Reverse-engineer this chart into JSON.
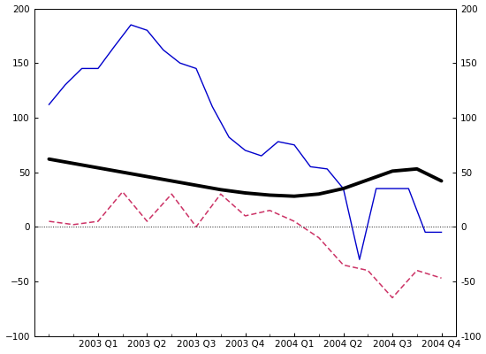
{
  "x_tick_positions": [
    1,
    2,
    3,
    4,
    5,
    6,
    7,
    8
  ],
  "x_tick_labels": [
    "2003 Q1",
    "2003 Q2",
    "2003 Q3",
    "2003 Q4",
    "2004 Q1",
    "2004 Q2",
    "2004 Q3",
    "2004 Q4"
  ],
  "blue_x": [
    0,
    0.33,
    0.67,
    1,
    1.33,
    1.67,
    2,
    2.33,
    2.67,
    3,
    3.33,
    3.67,
    4,
    4.33,
    4.67,
    5,
    5.33,
    5.67,
    6,
    6.33,
    6.67,
    7,
    7.33,
    7.67,
    8
  ],
  "blue_y": [
    112,
    130,
    145,
    145,
    165,
    185,
    180,
    162,
    150,
    145,
    110,
    82,
    70,
    65,
    78,
    75,
    55,
    53,
    35,
    -30,
    35,
    35,
    35,
    -5,
    -5
  ],
  "black_x": [
    0,
    0.5,
    1,
    1.5,
    2,
    2.5,
    3,
    3.5,
    4,
    4.5,
    5,
    5.5,
    6,
    6.5,
    7,
    7.5,
    8
  ],
  "black_y": [
    62,
    58,
    54,
    50,
    46,
    42,
    38,
    34,
    31,
    29,
    28,
    30,
    35,
    43,
    51,
    53,
    42
  ],
  "red_x": [
    0,
    0.5,
    1,
    1.5,
    2,
    2.5,
    3,
    3.5,
    4,
    4.5,
    5,
    5.5,
    6,
    6.5,
    7,
    7.5,
    8
  ],
  "red_y": [
    5,
    2,
    5,
    32,
    5,
    30,
    0,
    30,
    10,
    15,
    5,
    -10,
    -35,
    -40,
    -65,
    -40,
    -47
  ],
  "ylim": [
    -100,
    200
  ],
  "xlim": [
    -0.3,
    8.3
  ],
  "yticks": [
    -100,
    -50,
    0,
    50,
    100,
    150,
    200
  ],
  "blue_color": "#0000cc",
  "black_color": "#000000",
  "red_color": "#cc3366",
  "bg_color": "#ffffff",
  "tick_fontsize": 7.5,
  "linewidth_blue": 1.0,
  "linewidth_black": 2.8,
  "linewidth_red": 1.1
}
